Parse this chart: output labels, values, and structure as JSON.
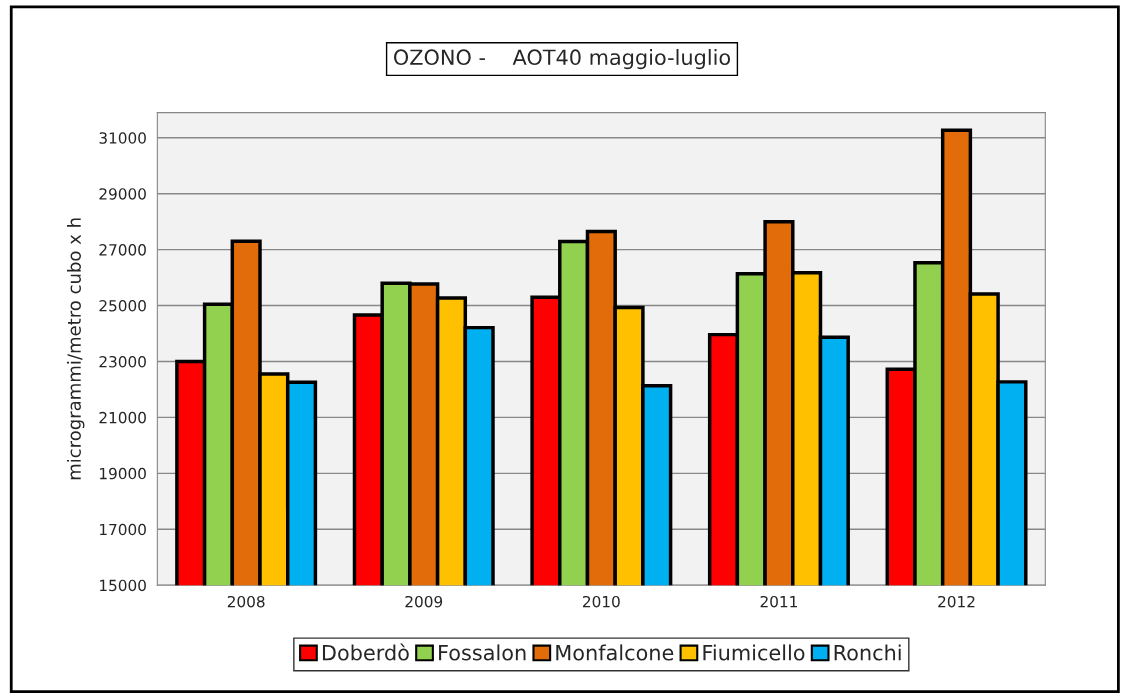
{
  "chart_data": {
    "type": "bar",
    "title": "OZONO -    AOT40 maggio-luglio",
    "ylabel": "microgrammi/metro cubo x h",
    "categories": [
      "2008",
      "2009",
      "2010",
      "2011",
      "2012"
    ],
    "series": [
      {
        "name": "Doberdò",
        "color": "#ff0000",
        "values": [
          23000,
          24660,
          25300,
          23960,
          22720
        ]
      },
      {
        "name": "Fossalon",
        "color": "#92d050",
        "values": [
          25050,
          25800,
          27290,
          26140,
          26530
        ]
      },
      {
        "name": "Monfalcone",
        "color": "#e36c0a",
        "values": [
          27300,
          25770,
          27650,
          28000,
          31270
        ]
      },
      {
        "name": "Fiumicello",
        "color": "#ffc000",
        "values": [
          22550,
          25270,
          24930,
          26170,
          25410
        ]
      },
      {
        "name": "Ronchi",
        "color": "#00b0f0",
        "values": [
          22260,
          24210,
          22130,
          23870,
          22270
        ]
      }
    ],
    "ylim": [
      15000,
      31900
    ],
    "yticks": [
      15000,
      17000,
      19000,
      21000,
      23000,
      25000,
      27000,
      29000,
      31000
    ],
    "grid": "y",
    "legend": "bottom"
  }
}
